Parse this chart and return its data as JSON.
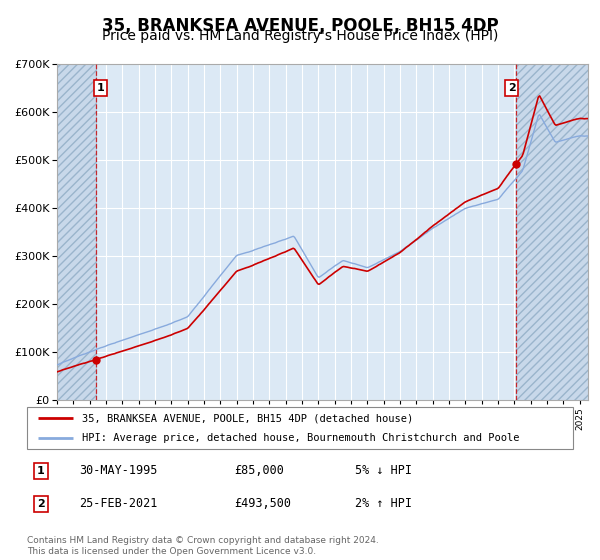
{
  "title": "35, BRANKSEA AVENUE, POOLE, BH15 4DP",
  "subtitle": "Price paid vs. HM Land Registry's House Price Index (HPI)",
  "title_fontsize": 12,
  "subtitle_fontsize": 10,
  "plot_bg": "#dce9f5",
  "grid_color": "#ffffff",
  "line1_color": "#cc0000",
  "line2_color": "#88aadd",
  "marker_color": "#cc0000",
  "sale1_date": 1995.38,
  "sale1_price": 85000,
  "sale2_date": 2021.12,
  "sale2_price": 493500,
  "legend_label1": "35, BRANKSEA AVENUE, POOLE, BH15 4DP (detached house)",
  "legend_label2": "HPI: Average price, detached house, Bournemouth Christchurch and Poole",
  "footer": "Contains HM Land Registry data © Crown copyright and database right 2024.\nThis data is licensed under the Open Government Licence v3.0.",
  "table_row1": [
    "1",
    "30-MAY-1995",
    "£85,000",
    "5% ↓ HPI"
  ],
  "table_row2": [
    "2",
    "25-FEB-2021",
    "£493,500",
    "2% ↑ HPI"
  ],
  "xmin": 1993.0,
  "xmax": 2025.5,
  "ymin": 0,
  "ymax": 700000
}
